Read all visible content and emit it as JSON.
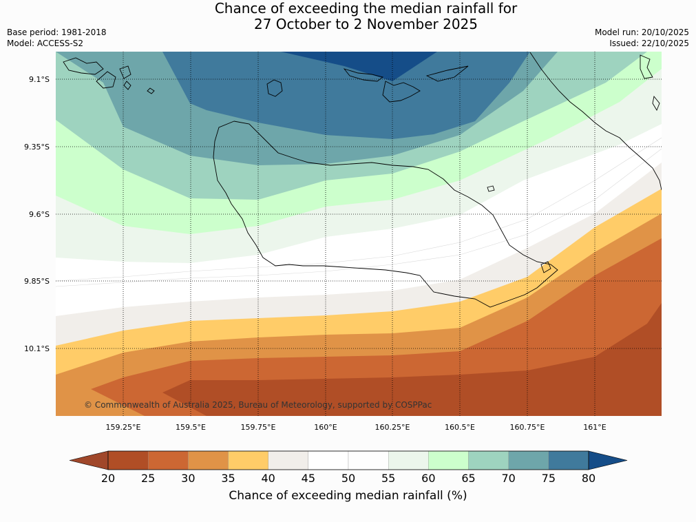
{
  "title": {
    "line1": "Chance of exceeding the median rainfall for",
    "line2": "27 October to 2 November 2025"
  },
  "meta": {
    "base_period": "Base period: 1981-2018",
    "model": "Model: ACCESS-S2",
    "model_run": "Model run: 20/10/2025",
    "issued": "Issued: 22/10/2025"
  },
  "map": {
    "lat_labels": [
      "9.1°S",
      "9.35°S",
      "9.6°S",
      "9.85°S",
      "10.1°S"
    ],
    "lon_labels": [
      "159.25°E",
      "159.5°E",
      "159.75°E",
      "160°E",
      "160.25°E",
      "160.5°E",
      "160.75°E",
      "161°E"
    ],
    "copyright": "© Commonwealth of Australia 2025, Bureau of Meteorology, supported by COSPPac"
  },
  "colorbar": {
    "label": "Chance of exceeding median rainfall (%)",
    "ticks": [
      "20",
      "25",
      "30",
      "35",
      "40",
      "45",
      "50",
      "55",
      "60",
      "65",
      "70",
      "75",
      "80"
    ],
    "under_color": "#a0472a",
    "over_color": "#154d88",
    "colors": [
      "#b04e26",
      "#cc6733",
      "#e09347",
      "#ffcc68",
      "#f1eeea",
      "#ffffff",
      "#fefefe",
      "#ecf6ec",
      "#ccffcc",
      "#9ed3bf",
      "#6ea6aa",
      "#407a9c"
    ]
  }
}
